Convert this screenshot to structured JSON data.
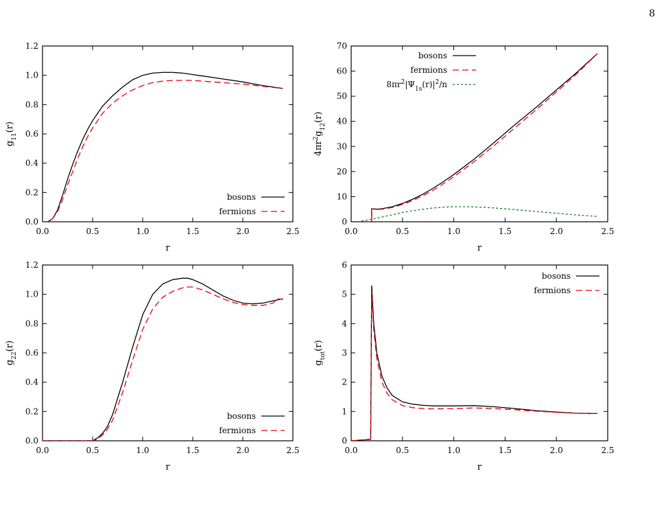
{
  "page": {
    "number": "8"
  },
  "chart_data": [
    {
      "type": "line",
      "xlabel": "r",
      "ylabel": "g11(r)",
      "ylabel_parts": {
        "base": "g",
        "sub": "11",
        "tail": "(r)"
      },
      "xlim": [
        0,
        2.5
      ],
      "ylim": [
        0,
        1.2
      ],
      "xticks": [
        "0.0",
        "0.5",
        "1.0",
        "1.5",
        "2.0",
        "2.5"
      ],
      "yticks": [
        "0.0",
        "0.2",
        "0.4",
        "0.6",
        "0.8",
        "1.0",
        "1.2"
      ],
      "legend_position": "bottom-right",
      "series": [
        {
          "name": "bosons",
          "color": "#000000",
          "dash": "solid",
          "x": [
            0.0,
            0.05,
            0.1,
            0.15,
            0.2,
            0.25,
            0.3,
            0.35,
            0.4,
            0.45,
            0.5,
            0.55,
            0.6,
            0.7,
            0.8,
            0.9,
            1.0,
            1.1,
            1.2,
            1.3,
            1.4,
            1.5,
            1.6,
            1.8,
            2.0,
            2.2,
            2.4
          ],
          "values": [
            0.0,
            0.0,
            0.02,
            0.08,
            0.18,
            0.29,
            0.39,
            0.48,
            0.56,
            0.63,
            0.69,
            0.74,
            0.79,
            0.86,
            0.92,
            0.97,
            1.0,
            1.015,
            1.02,
            1.02,
            1.015,
            1.005,
            0.995,
            0.975,
            0.955,
            0.93,
            0.91
          ]
        },
        {
          "name": "fermions",
          "color": "#e8000b",
          "dash": "long-dash",
          "x": [
            0.0,
            0.05,
            0.1,
            0.15,
            0.2,
            0.25,
            0.3,
            0.35,
            0.4,
            0.45,
            0.5,
            0.55,
            0.6,
            0.7,
            0.8,
            0.9,
            1.0,
            1.1,
            1.2,
            1.3,
            1.4,
            1.5,
            1.6,
            1.8,
            2.0,
            2.2,
            2.4
          ],
          "values": [
            0.0,
            0.0,
            0.02,
            0.07,
            0.15,
            0.25,
            0.34,
            0.43,
            0.51,
            0.58,
            0.64,
            0.69,
            0.74,
            0.81,
            0.86,
            0.9,
            0.93,
            0.95,
            0.96,
            0.965,
            0.965,
            0.965,
            0.96,
            0.95,
            0.94,
            0.925,
            0.91
          ]
        }
      ]
    },
    {
      "type": "line",
      "xlabel": "r",
      "ylabel": "4πr2g12(r)",
      "ylabel_parts": {
        "base": "4πr",
        "sup": "2",
        "base2": "g",
        "sub": "12",
        "tail": "(r)"
      },
      "xlim": [
        0,
        2.5
      ],
      "ylim": [
        0,
        70
      ],
      "xticks": [
        "0.0",
        "0.5",
        "1.0",
        "1.5",
        "2.0",
        "2.5"
      ],
      "yticks": [
        "0",
        "10",
        "20",
        "30",
        "40",
        "50",
        "60",
        "70"
      ],
      "legend_position": "top-left",
      "series": [
        {
          "name": "bosons",
          "color": "#000000",
          "dash": "solid",
          "x": [
            0.2,
            0.2,
            0.25,
            0.3,
            0.4,
            0.5,
            0.6,
            0.7,
            0.8,
            0.9,
            1.0,
            1.2,
            1.4,
            1.6,
            1.8,
            2.0,
            2.2,
            2.4
          ],
          "values": [
            0.0,
            5.2,
            5.0,
            5.2,
            6.0,
            7.3,
            9.0,
            11.0,
            13.4,
            16.0,
            18.8,
            25.0,
            31.8,
            38.8,
            45.5,
            52.5,
            59.5,
            67.0
          ]
        },
        {
          "name": "fermions",
          "color": "#e8000b",
          "dash": "long-dash",
          "x": [
            0.2,
            0.2,
            0.25,
            0.3,
            0.4,
            0.5,
            0.6,
            0.7,
            0.8,
            0.9,
            1.0,
            1.2,
            1.4,
            1.6,
            1.8,
            2.0,
            2.2,
            2.4
          ],
          "values": [
            0.0,
            5.1,
            4.9,
            5.0,
            5.7,
            6.9,
            8.5,
            10.4,
            12.6,
            15.2,
            17.9,
            24.0,
            30.6,
            37.6,
            44.5,
            51.7,
            59.0,
            67.0
          ]
        },
        {
          "name": "8πr2|Ψ1s(r)|2/n",
          "color": "#1a7a1a",
          "dash": "short-dash",
          "legend_parts": {
            "a": "8πr",
            "b": "2",
            "c": "|Ψ",
            "d": "1s",
            "e": "(r)|",
            "f": "2",
            "g": "/n"
          },
          "x": [
            0.1,
            0.2,
            0.3,
            0.4,
            0.5,
            0.6,
            0.7,
            0.8,
            0.9,
            1.0,
            1.1,
            1.2,
            1.4,
            1.6,
            1.8,
            2.0,
            2.2,
            2.4
          ],
          "values": [
            0.3,
            1.0,
            1.9,
            2.8,
            3.7,
            4.4,
            5.0,
            5.5,
            5.8,
            6.0,
            6.0,
            5.9,
            5.5,
            4.8,
            4.1,
            3.4,
            2.7,
            2.1
          ]
        }
      ]
    },
    {
      "type": "line",
      "xlabel": "r",
      "ylabel": "g22(r)",
      "ylabel_parts": {
        "base": "g",
        "sub": "22",
        "tail": "(r)"
      },
      "xlim": [
        0,
        2.5
      ],
      "ylim": [
        0,
        1.2
      ],
      "xticks": [
        "0.0",
        "0.5",
        "1.0",
        "1.5",
        "2.0",
        "2.5"
      ],
      "yticks": [
        "0.0",
        "0.2",
        "0.4",
        "0.6",
        "0.8",
        "1.0",
        "1.2"
      ],
      "legend_position": "bottom-right",
      "series": [
        {
          "name": "bosons",
          "color": "#000000",
          "dash": "solid",
          "x": [
            0.0,
            0.3,
            0.5,
            0.55,
            0.6,
            0.65,
            0.7,
            0.8,
            0.9,
            1.0,
            1.1,
            1.2,
            1.3,
            1.4,
            1.45,
            1.5,
            1.6,
            1.7,
            1.8,
            1.9,
            2.0,
            2.1,
            2.2,
            2.3,
            2.4
          ],
          "values": [
            0.0,
            0.0,
            0.0,
            0.02,
            0.05,
            0.1,
            0.18,
            0.4,
            0.64,
            0.86,
            1.0,
            1.07,
            1.1,
            1.11,
            1.11,
            1.1,
            1.07,
            1.03,
            0.99,
            0.96,
            0.94,
            0.935,
            0.94,
            0.955,
            0.97
          ]
        },
        {
          "name": "fermions",
          "color": "#e8000b",
          "dash": "long-dash",
          "x": [
            0.0,
            0.3,
            0.5,
            0.55,
            0.6,
            0.65,
            0.7,
            0.8,
            0.9,
            1.0,
            1.1,
            1.2,
            1.3,
            1.4,
            1.45,
            1.5,
            1.6,
            1.7,
            1.8,
            1.9,
            2.0,
            2.1,
            2.2,
            2.3,
            2.35,
            2.4
          ],
          "values": [
            0.0,
            0.0,
            0.0,
            0.01,
            0.04,
            0.08,
            0.14,
            0.33,
            0.55,
            0.76,
            0.9,
            0.98,
            1.02,
            1.045,
            1.05,
            1.05,
            1.03,
            1.0,
            0.97,
            0.945,
            0.93,
            0.925,
            0.925,
            0.94,
            0.97,
            0.965
          ]
        }
      ]
    },
    {
      "type": "line",
      "xlabel": "r",
      "ylabel": "gtot(r)",
      "ylabel_parts": {
        "base": "g",
        "sub": "tot",
        "tail": "(r)"
      },
      "xlim": [
        0,
        2.5
      ],
      "ylim": [
        0,
        6
      ],
      "xticks": [
        "0.0",
        "0.5",
        "1.0",
        "1.5",
        "2.0",
        "2.5"
      ],
      "yticks": [
        "0",
        "1",
        "2",
        "3",
        "4",
        "5",
        "6"
      ],
      "legend_position": "top-right",
      "series": [
        {
          "name": "bosons",
          "color": "#000000",
          "dash": "solid",
          "x": [
            0.0,
            0.19,
            0.2,
            0.22,
            0.25,
            0.3,
            0.35,
            0.4,
            0.5,
            0.6,
            0.7,
            0.8,
            1.0,
            1.2,
            1.4,
            1.6,
            1.8,
            2.0,
            2.2,
            2.4
          ],
          "values": [
            0.0,
            0.05,
            5.3,
            4.0,
            3.0,
            2.2,
            1.8,
            1.55,
            1.33,
            1.25,
            1.21,
            1.19,
            1.19,
            1.2,
            1.16,
            1.1,
            1.03,
            0.98,
            0.94,
            0.93
          ]
        },
        {
          "name": "fermions",
          "color": "#e8000b",
          "dash": "long-dash",
          "x": [
            0.0,
            0.19,
            0.2,
            0.22,
            0.25,
            0.3,
            0.35,
            0.4,
            0.5,
            0.6,
            0.7,
            0.8,
            1.0,
            1.2,
            1.4,
            1.6,
            1.8,
            2.0,
            2.2,
            2.4
          ],
          "values": [
            0.0,
            0.05,
            5.1,
            3.8,
            2.8,
            2.0,
            1.62,
            1.4,
            1.2,
            1.13,
            1.1,
            1.09,
            1.1,
            1.12,
            1.1,
            1.06,
            1.01,
            0.97,
            0.94,
            0.93
          ]
        }
      ]
    }
  ]
}
